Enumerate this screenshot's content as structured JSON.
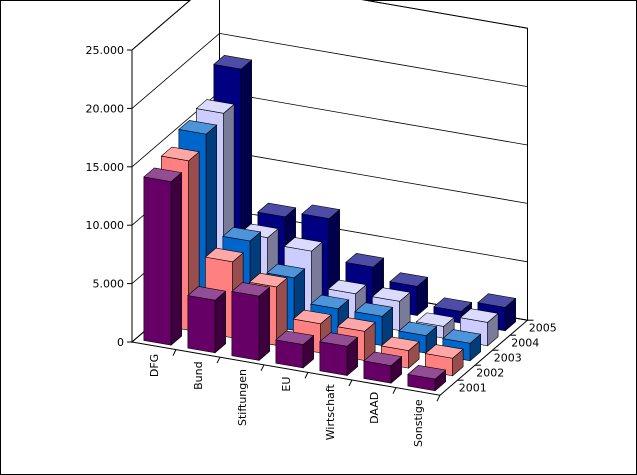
{
  "chart_data": {
    "type": "bar3d",
    "categories": [
      "DFG",
      "Bund",
      "Stiftungen",
      "EU",
      "Wirtschaft",
      "DAAD",
      "Sonstige"
    ],
    "series": [
      {
        "name": "2001",
        "color": "#660066",
        "values": [
          14000,
          4500,
          5500,
          2000,
          2500,
          1500,
          1000
        ]
      },
      {
        "name": "2002",
        "color": "#ff8080",
        "values": [
          14500,
          6500,
          5000,
          2500,
          2500,
          1500,
          1500
        ]
      },
      {
        "name": "2003",
        "color": "#0066cc",
        "values": [
          15500,
          7000,
          4500,
          2500,
          2500,
          1500,
          1500
        ]
      },
      {
        "name": "2004",
        "color": "#ccccff",
        "values": [
          16000,
          6000,
          5500,
          2500,
          2500,
          1000,
          2000
        ]
      },
      {
        "name": "2005",
        "color": "#000080",
        "values": [
          18500,
          6500,
          7000,
          3500,
          2500,
          1000,
          2000
        ]
      }
    ],
    "ylim": [
      0,
      25000
    ],
    "yticks": [
      0,
      {
        "value": 5000,
        "label": "5.000"
      },
      {
        "value": 10000,
        "label": "10.000"
      },
      {
        "value": 15000,
        "label": "15.000"
      },
      {
        "value": 20000,
        "label": "20.000"
      },
      {
        "value": 25000,
        "label": "25.000"
      }
    ],
    "grid": true
  }
}
